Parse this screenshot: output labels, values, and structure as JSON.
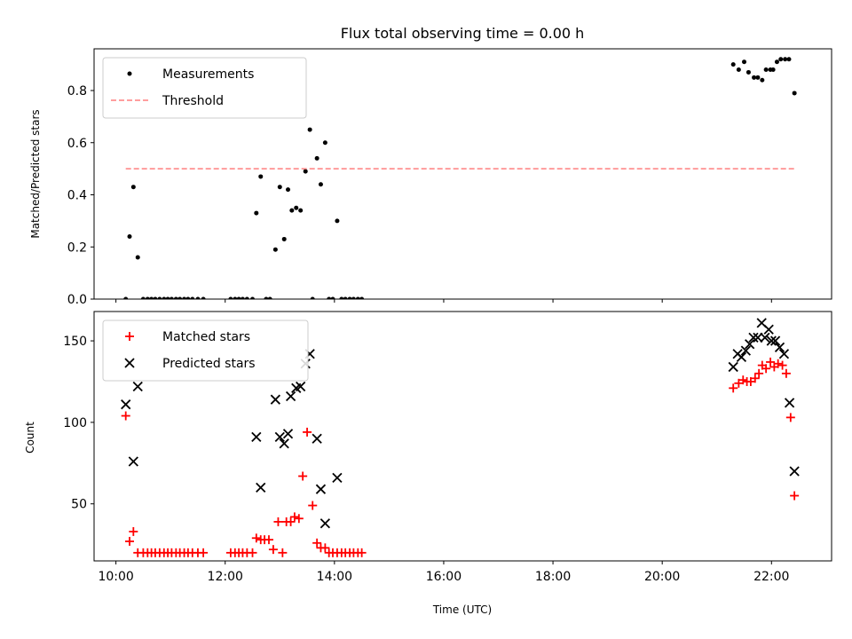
{
  "figure": {
    "title": "Flux total observing time = 0.00 h",
    "xlabel": "Time (UTC)"
  },
  "chart_data": [
    {
      "type": "scatter",
      "ylabel": "Matched/Predicted stars",
      "ylim": [
        0,
        0.96
      ],
      "yticks": [
        0.0,
        0.2,
        0.4,
        0.6,
        0.8
      ],
      "ytick_labels": [
        "0.0",
        "0.2",
        "0.4",
        "0.6",
        "0.8"
      ],
      "legend_position": "upper-left",
      "series": [
        {
          "name": "Measurements",
          "kind": "points",
          "color": "#000000",
          "x": [
            10.18,
            10.25,
            10.32,
            10.4,
            10.5,
            10.58,
            10.65,
            10.72,
            10.8,
            10.88,
            10.95,
            11.02,
            11.1,
            11.17,
            11.25,
            11.32,
            11.4,
            11.5,
            11.6,
            12.1,
            12.18,
            12.25,
            12.32,
            12.4,
            12.5,
            12.57,
            12.65,
            12.75,
            12.82,
            12.92,
            13.0,
            13.08,
            13.15,
            13.22,
            13.3,
            13.38,
            13.47,
            13.55,
            13.6,
            13.68,
            13.75,
            13.83,
            13.9,
            13.97,
            14.05,
            14.13,
            14.2,
            14.28,
            14.35,
            14.43,
            14.5,
            21.3,
            21.4,
            21.5,
            21.58,
            21.68,
            21.75,
            21.83,
            21.9,
            21.98,
            22.03,
            22.1,
            22.17,
            22.25,
            22.32,
            22.42
          ],
          "y": [
            0.0,
            0.24,
            0.43,
            0.16,
            0.0,
            0.0,
            0.0,
            0.0,
            0.0,
            0.0,
            0.0,
            0.0,
            0.0,
            0.0,
            0.0,
            0.0,
            0.0,
            0.0,
            0.0,
            0.0,
            0.0,
            0.0,
            0.0,
            0.0,
            0.0,
            0.33,
            0.47,
            0.0,
            0.0,
            0.19,
            0.43,
            0.23,
            0.42,
            0.34,
            0.35,
            0.34,
            0.49,
            0.65,
            0.0,
            0.54,
            0.44,
            0.6,
            0.0,
            0.0,
            0.3,
            0.0,
            0.0,
            0.0,
            0.0,
            0.0,
            0.0,
            0.9,
            0.88,
            0.91,
            0.87,
            0.85,
            0.85,
            0.84,
            0.88,
            0.88,
            0.88,
            0.91,
            0.92,
            0.92,
            0.92,
            0.79
          ]
        },
        {
          "name": "Threshold",
          "kind": "dashed-line",
          "color": "#ff7f7f",
          "x": [
            10.18,
            22.42
          ],
          "y": [
            0.5,
            0.5
          ]
        }
      ]
    },
    {
      "type": "scatter",
      "ylabel": "Count",
      "ylim": [
        15,
        168
      ],
      "yticks": [
        50,
        100,
        150
      ],
      "ytick_labels": [
        "50",
        "100",
        "150"
      ],
      "xlim": [
        9.6,
        23.1
      ],
      "xticks": [
        10,
        12,
        14,
        16,
        18,
        20,
        22
      ],
      "xtick_labels": [
        "10:00",
        "12:00",
        "14:00",
        "16:00",
        "18:00",
        "20:00",
        "22:00"
      ],
      "legend_position": "upper-left",
      "series": [
        {
          "name": "Matched stars",
          "marker": "plus",
          "color": "#ff0000",
          "x": [
            10.18,
            10.25,
            10.32,
            10.4,
            10.5,
            10.58,
            10.65,
            10.72,
            10.8,
            10.88,
            10.95,
            11.02,
            11.1,
            11.17,
            11.25,
            11.32,
            11.4,
            11.5,
            11.6,
            12.1,
            12.18,
            12.25,
            12.32,
            12.4,
            12.5,
            12.57,
            12.65,
            12.72,
            12.8,
            12.88,
            12.97,
            13.05,
            13.12,
            13.2,
            13.27,
            13.35,
            13.42,
            13.5,
            13.6,
            13.68,
            13.75,
            13.83,
            13.9,
            13.97,
            14.05,
            14.13,
            14.2,
            14.28,
            14.35,
            14.43,
            14.5,
            21.3,
            21.4,
            21.48,
            21.55,
            21.62,
            21.7,
            21.77,
            21.83,
            21.9,
            21.98,
            22.05,
            22.12,
            22.2,
            22.27,
            22.35,
            22.42
          ],
          "y": [
            104,
            27,
            33,
            20,
            20,
            20,
            20,
            20,
            20,
            20,
            20,
            20,
            20,
            20,
            20,
            20,
            20,
            20,
            20,
            20,
            20,
            20,
            20,
            20,
            20,
            29,
            28,
            28,
            28,
            22,
            39,
            20,
            39,
            39,
            42,
            41,
            67,
            94,
            49,
            26,
            23,
            23,
            20,
            20,
            20,
            20,
            20,
            20,
            20,
            20,
            20,
            121,
            124,
            126,
            125,
            125,
            127,
            130,
            135,
            133,
            137,
            134,
            136,
            135,
            130,
            103,
            55
          ]
        },
        {
          "name": "Predicted stars",
          "marker": "x",
          "color": "#000000",
          "x": [
            10.18,
            10.32,
            10.4,
            12.57,
            12.65,
            12.92,
            13.0,
            13.08,
            13.15,
            13.2,
            13.3,
            13.38,
            13.47,
            13.55,
            13.68,
            13.75,
            13.83,
            14.05,
            21.3,
            21.38,
            21.45,
            21.53,
            21.6,
            21.67,
            21.75,
            21.82,
            21.88,
            21.95,
            22.0,
            22.07,
            22.15,
            22.23,
            22.33,
            22.42
          ],
          "y": [
            111,
            76,
            122,
            91,
            60,
            114,
            91,
            87,
            93,
            116,
            121,
            122,
            136,
            142,
            90,
            59,
            38,
            66,
            134,
            142,
            140,
            144,
            148,
            152,
            152,
            161,
            152,
            157,
            150,
            150,
            146,
            142,
            112,
            70
          ]
        }
      ]
    }
  ]
}
